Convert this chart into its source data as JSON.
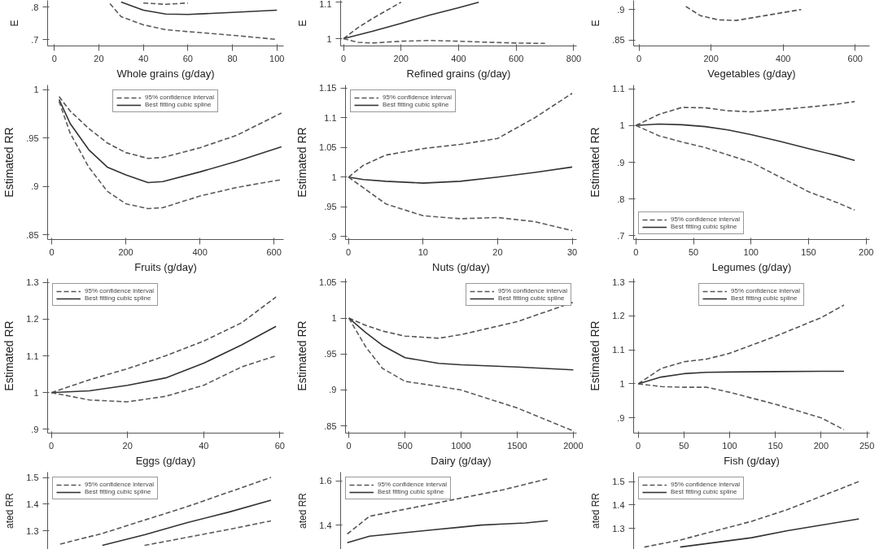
{
  "chart_data": [
    {
      "type": "line",
      "xlabel": "Whole grains (g/day)",
      "ylabel": "E",
      "xlim": [
        -3,
        103
      ],
      "ylim": [
        0.68,
        0.82
      ],
      "xticks": [
        0,
        20,
        40,
        60,
        80,
        100
      ],
      "yticks": [
        {
          "value": 0.7,
          "label": ".7"
        },
        {
          "value": 0.8,
          "label": ".8"
        }
      ],
      "x": [
        25,
        30,
        40,
        50,
        60,
        80,
        100
      ],
      "series": [
        {
          "color": "#555555",
          "line_style": "dashed",
          "values": [
            null,
            null,
            0.812,
            0.808,
            0.812,
            null,
            null
          ]
        },
        {
          "color": "#333333",
          "line_style": "solid",
          "values": [
            null,
            0.815,
            0.79,
            0.778,
            0.777,
            0.783,
            0.79
          ]
        },
        {
          "color": "#5c5c5c",
          "line_style": "dashed",
          "values": [
            0.81,
            0.77,
            0.745,
            0.73,
            0.724,
            0.713,
            0.7
          ]
        }
      ]
    },
    {
      "type": "line",
      "xlabel": "Refined grains (g/day)",
      "ylabel": "E",
      "xlim": [
        -10,
        810
      ],
      "ylim": [
        0.98,
        1.105
      ],
      "xticks": [
        0,
        200,
        400,
        600,
        800
      ],
      "yticks": [
        1,
        1.1
      ],
      "x": [
        0,
        50,
        100,
        200,
        300,
        400,
        470,
        600,
        700
      ],
      "series": [
        {
          "color": "#555555",
          "line_style": "dashed",
          "values": [
            1,
            1.03,
            1.055,
            1.1,
            null,
            null,
            null,
            null,
            null
          ]
        },
        {
          "color": "#333333",
          "line_style": "solid",
          "values": [
            1,
            1.01,
            1.02,
            1.042,
            1.065,
            1.085,
            1.1,
            null,
            null
          ]
        },
        {
          "color": "#5c5c5c",
          "line_style": "dashed",
          "values": [
            1,
            0.99,
            0.988,
            0.993,
            0.995,
            0.993,
            0.991,
            0.988,
            0.987
          ]
        }
      ]
    },
    {
      "type": "line",
      "xlabel": "Vegetables (g/day)",
      "ylabel": "E",
      "xlim": [
        -15,
        640
      ],
      "ylim": [
        0.84,
        0.915
      ],
      "xticks": [
        0,
        200,
        400,
        600
      ],
      "yticks": [
        {
          "value": 0.85,
          "label": ".85"
        },
        {
          "value": 0.9,
          "label": ".9"
        }
      ],
      "x": [
        130,
        170,
        220,
        270,
        330,
        400,
        450
      ],
      "series": [
        {
          "color": "#555555",
          "line_style": "dashed",
          "values": [
            0.905,
            0.89,
            0.883,
            0.882,
            0.888,
            0.895,
            0.9
          ]
        }
      ]
    },
    {
      "type": "line",
      "xlabel": "Fruits (g/day)",
      "ylabel": "Estimated RR",
      "legend": "top",
      "xlim": [
        -11,
        626
      ],
      "ylim": [
        0.845,
        1.005
      ],
      "xticks": [
        0,
        200,
        400,
        600
      ],
      "yticks": [
        {
          "value": 0.85,
          "label": ".85"
        },
        {
          "value": 0.9,
          "label": ".9"
        },
        {
          "value": 0.95,
          "label": ".95"
        },
        1
      ],
      "x": [
        20,
        50,
        100,
        150,
        200,
        260,
        300,
        400,
        500,
        620
      ],
      "series": [
        {
          "name": "95% confidence interval",
          "color": "#555555",
          "line_style": "dashed",
          "values": [
            0.993,
            0.978,
            0.96,
            0.945,
            0.935,
            0.929,
            0.93,
            0.94,
            0.953,
            0.976
          ]
        },
        {
          "name": "Best fitting cubic spline",
          "color": "#333333",
          "line_style": "solid",
          "values": [
            0.99,
            0.965,
            0.938,
            0.92,
            0.912,
            0.904,
            0.905,
            0.915,
            0.926,
            0.941
          ]
        },
        {
          "color": "#5c5c5c",
          "line_style": "dashed",
          "values": [
            0.988,
            0.955,
            0.92,
            0.895,
            0.882,
            0.877,
            0.878,
            0.89,
            0.899,
            0.907
          ]
        }
      ]
    },
    {
      "type": "line",
      "xlabel": "Nuts (g/day)",
      "ylabel": "Estimated RR",
      "legend": "top left",
      "xlim": [
        -0.4,
        30.6
      ],
      "ylim": [
        0.895,
        1.155
      ],
      "xticks": [
        0,
        10,
        20,
        30
      ],
      "yticks": [
        {
          "value": 0.9,
          "label": ".9"
        },
        {
          "value": 0.95,
          "label": ".95"
        },
        1,
        1.05,
        1.1,
        1.15
      ],
      "x": [
        0,
        2,
        5,
        10,
        15,
        20,
        25,
        30
      ],
      "series": [
        {
          "name": "95% confidence interval",
          "color": "#555555",
          "line_style": "dashed",
          "values": [
            1,
            1.02,
            1.037,
            1.048,
            1.055,
            1.065,
            1.1,
            1.141
          ]
        },
        {
          "name": "Best fitting cubic spline",
          "color": "#333333",
          "line_style": "solid",
          "values": [
            1,
            0.996,
            0.993,
            0.99,
            0.993,
            1.0,
            1.008,
            1.017
          ]
        },
        {
          "color": "#5c5c5c",
          "line_style": "dashed",
          "values": [
            1,
            0.982,
            0.955,
            0.935,
            0.93,
            0.932,
            0.925,
            0.91
          ]
        }
      ]
    },
    {
      "type": "line",
      "xlabel": "Legumes (g/day)",
      "ylabel": "Estimated RR",
      "legend": "bottom left",
      "xlim": [
        -2,
        203
      ],
      "ylim": [
        0.69,
        1.11
      ],
      "xticks": [
        0,
        50,
        100,
        150,
        200
      ],
      "yticks": [
        {
          "value": 0.7,
          "label": ".7"
        },
        {
          "value": 0.8,
          "label": ".8"
        },
        {
          "value": 0.9,
          "label": ".9"
        },
        1,
        1.1
      ],
      "x": [
        0,
        20,
        40,
        60,
        80,
        100,
        125,
        150,
        175,
        190
      ],
      "series": [
        {
          "name": "95% confidence interval",
          "color": "#555555",
          "line_style": "dashed",
          "values": [
            1,
            1.03,
            1.049,
            1.048,
            1.04,
            1.037,
            1.043,
            1.05,
            1.058,
            1.065
          ]
        },
        {
          "name": "Best fitting cubic spline",
          "color": "#333333",
          "line_style": "solid",
          "values": [
            1,
            1.004,
            1.002,
            0.997,
            0.988,
            0.975,
            0.957,
            0.937,
            0.918,
            0.905
          ]
        },
        {
          "color": "#5c5c5c",
          "line_style": "dashed",
          "values": [
            1,
            0.972,
            0.955,
            0.94,
            0.92,
            0.9,
            0.86,
            0.82,
            0.79,
            0.77
          ]
        }
      ]
    },
    {
      "type": "line",
      "xlabel": "Eggs (g/day)",
      "ylabel": "Estimated RR",
      "legend": "top left",
      "xlim": [
        -1,
        61
      ],
      "ylim": [
        0.89,
        1.31
      ],
      "xticks": [
        0,
        20,
        40,
        60
      ],
      "yticks": [
        {
          "value": 0.9,
          "label": ".9"
        },
        1,
        1.1,
        1.2,
        1.3
      ],
      "x": [
        0,
        10,
        20,
        30,
        40,
        50,
        59
      ],
      "series": [
        {
          "name": "95% confidence interval",
          "color": "#555555",
          "line_style": "dashed",
          "values": [
            1,
            1.035,
            1.065,
            1.1,
            1.14,
            1.19,
            1.26
          ]
        },
        {
          "name": "Best fitting cubic spline",
          "color": "#333333",
          "line_style": "solid",
          "values": [
            1,
            1.005,
            1.02,
            1.04,
            1.08,
            1.13,
            1.18
          ]
        },
        {
          "color": "#5c5c5c",
          "line_style": "dashed",
          "values": [
            1,
            0.98,
            0.975,
            0.99,
            1.02,
            1.07,
            1.1
          ]
        }
      ]
    },
    {
      "type": "line",
      "xlabel": "Dairy (g/day)",
      "ylabel": "Estimated RR",
      "legend": "top right",
      "xlim": [
        -30,
        2030
      ],
      "ylim": [
        0.84,
        1.055
      ],
      "xticks": [
        0,
        500,
        1000,
        1500,
        2000
      ],
      "yticks": [
        {
          "value": 0.85,
          "label": ".85"
        },
        {
          "value": 0.9,
          "label": ".9"
        },
        {
          "value": 0.95,
          "label": ".95"
        },
        1,
        1.05
      ],
      "x": [
        0,
        150,
        300,
        500,
        800,
        1000,
        1500,
        2000
      ],
      "series": [
        {
          "name": "95% confidence interval",
          "color": "#555555",
          "line_style": "dashed",
          "values": [
            1,
            0.99,
            0.982,
            0.975,
            0.972,
            0.977,
            0.995,
            1.022
          ]
        },
        {
          "name": "Best fitting cubic spline",
          "color": "#333333",
          "line_style": "solid",
          "values": [
            1,
            0.98,
            0.962,
            0.945,
            0.937,
            0.935,
            0.932,
            0.928
          ]
        },
        {
          "color": "#5c5c5c",
          "line_style": "dashed",
          "values": [
            1,
            0.96,
            0.93,
            0.912,
            0.905,
            0.9,
            0.875,
            0.843
          ]
        }
      ]
    },
    {
      "type": "line",
      "xlabel": "Fish (g/day)",
      "ylabel": "Estimated RR",
      "legend": "top",
      "xlim": [
        -5,
        253
      ],
      "ylim": [
        0.855,
        1.31
      ],
      "xticks": [
        0,
        50,
        100,
        150,
        200,
        250
      ],
      "yticks": [
        {
          "value": 0.9,
          "label": ".9"
        },
        1,
        1.1,
        1.2,
        1.3
      ],
      "x": [
        0,
        25,
        50,
        75,
        100,
        150,
        200,
        225
      ],
      "series": [
        {
          "name": "95% confidence interval",
          "color": "#555555",
          "line_style": "dashed",
          "values": [
            1,
            1.045,
            1.065,
            1.073,
            1.09,
            1.14,
            1.195,
            1.232
          ]
        },
        {
          "name": "Best fitting cubic spline",
          "color": "#333333",
          "line_style": "solid",
          "values": [
            1,
            1.02,
            1.03,
            1.034,
            1.035,
            1.036,
            1.037,
            1.037
          ]
        },
        {
          "color": "#5c5c5c",
          "line_style": "dashed",
          "values": [
            1,
            0.992,
            0.99,
            0.99,
            0.975,
            0.94,
            0.9,
            0.865
          ]
        }
      ]
    },
    {
      "type": "line",
      "ylabel": "ated RR",
      "legend": "top left",
      "tick_labels": "y",
      "ylim": [
        1.23,
        1.52
      ],
      "yticks": [
        1.3,
        1.4,
        1.5
      ],
      "categories": [
        null,
        null,
        null,
        null,
        null,
        null
      ],
      "series": [
        {
          "name": "95% confidence interval",
          "color": "#555555",
          "line_style": "dashed",
          "values": [
            1.25,
            1.29,
            1.34,
            1.39,
            1.445,
            1.5
          ]
        },
        {
          "name": "Best fitting cubic spline",
          "color": "#333333",
          "line_style": "solid",
          "values": [
            null,
            1.245,
            1.285,
            1.33,
            1.37,
            1.415
          ]
        },
        {
          "color": "#5c5c5c",
          "line_style": "dashed",
          "values": [
            null,
            null,
            1.245,
            1.275,
            1.305,
            1.337
          ]
        }
      ]
    },
    {
      "type": "line",
      "ylabel": "ated RR",
      "legend": "top left",
      "tick_labels": "y",
      "ylim": [
        1.29,
        1.64
      ],
      "yticks": [
        1.4,
        1.6
      ],
      "categories": [
        null,
        null,
        null,
        null,
        null,
        null,
        null,
        null,
        null,
        null,
        null
      ],
      "series": [
        {
          "name": "95% confidence interval",
          "color": "#555555",
          "line_style": "dashed",
          "values": [
            1.36,
            1.44,
            1.46,
            1.48,
            1.5,
            1.52,
            1.54,
            1.56,
            1.585,
            1.61,
            null
          ]
        },
        {
          "name": "Best fitting cubic spline",
          "color": "#333333",
          "line_style": "solid",
          "values": [
            1.32,
            1.35,
            1.36,
            1.37,
            1.38,
            1.39,
            1.4,
            1.405,
            1.41,
            1.42,
            null
          ]
        }
      ]
    },
    {
      "type": "line",
      "ylabel": "ated RR",
      "legend": "top left",
      "tick_labels": "y",
      "ylim": [
        1.21,
        1.54
      ],
      "yticks": [
        1.3,
        1.4,
        1.5
      ],
      "categories": [
        null,
        null,
        null,
        null,
        null,
        null,
        null
      ],
      "series": [
        {
          "name": "95% confidence interval",
          "color": "#555555",
          "line_style": "dashed",
          "values": [
            1.22,
            1.25,
            1.29,
            1.33,
            1.38,
            1.44,
            1.5
          ]
        },
        {
          "name": "Best fitting cubic spline",
          "color": "#333333",
          "line_style": "solid",
          "values": [
            null,
            1.22,
            1.24,
            1.26,
            1.29,
            1.315,
            1.34
          ]
        }
      ]
    }
  ]
}
